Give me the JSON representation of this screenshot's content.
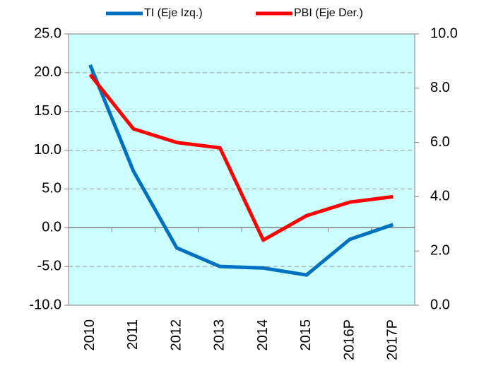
{
  "chart_data": {
    "type": "line",
    "categories": [
      "2010",
      "2011",
      "2012",
      "2013",
      "2014",
      "2015",
      "2016P",
      "2017P"
    ],
    "series": [
      {
        "name": "TI (Eje Izq.)",
        "color": "#0070c0",
        "values": [
          21.0,
          7.3,
          -2.6,
          -5.0,
          -5.2,
          -6.1,
          -1.5,
          0.4
        ]
      },
      {
        "name": "PBI (Eje Der.)",
        "color": "#ff0000",
        "axis": "y2",
        "values": [
          8.5,
          6.5,
          6.0,
          5.8,
          2.4,
          3.3,
          3.8,
          4.0
        ]
      }
    ],
    "ylim": [
      -10,
      25
    ],
    "yticks": [
      {
        "value": -10,
        "label": "-10.0"
      },
      {
        "value": -5,
        "label": "-5.0"
      },
      {
        "value": 0,
        "label": "0.0"
      },
      {
        "value": 5,
        "label": "5.0"
      },
      {
        "value": 10,
        "label": "10.0"
      },
      {
        "value": 15,
        "label": "15.0"
      },
      {
        "value": 20,
        "label": "20.0"
      },
      {
        "value": 25,
        "label": "25.0"
      }
    ],
    "y2lim": [
      0,
      10
    ],
    "y2ticks": [
      {
        "value": 0,
        "label": "0.0"
      },
      {
        "value": 2,
        "label": "2.0"
      },
      {
        "value": 4,
        "label": "4.0"
      },
      {
        "value": 6,
        "label": "6.0"
      },
      {
        "value": 8,
        "label": "8.0"
      },
      {
        "value": 10,
        "label": "10.0"
      }
    ],
    "grid": true,
    "background": "#ccffff",
    "legend": "top"
  }
}
